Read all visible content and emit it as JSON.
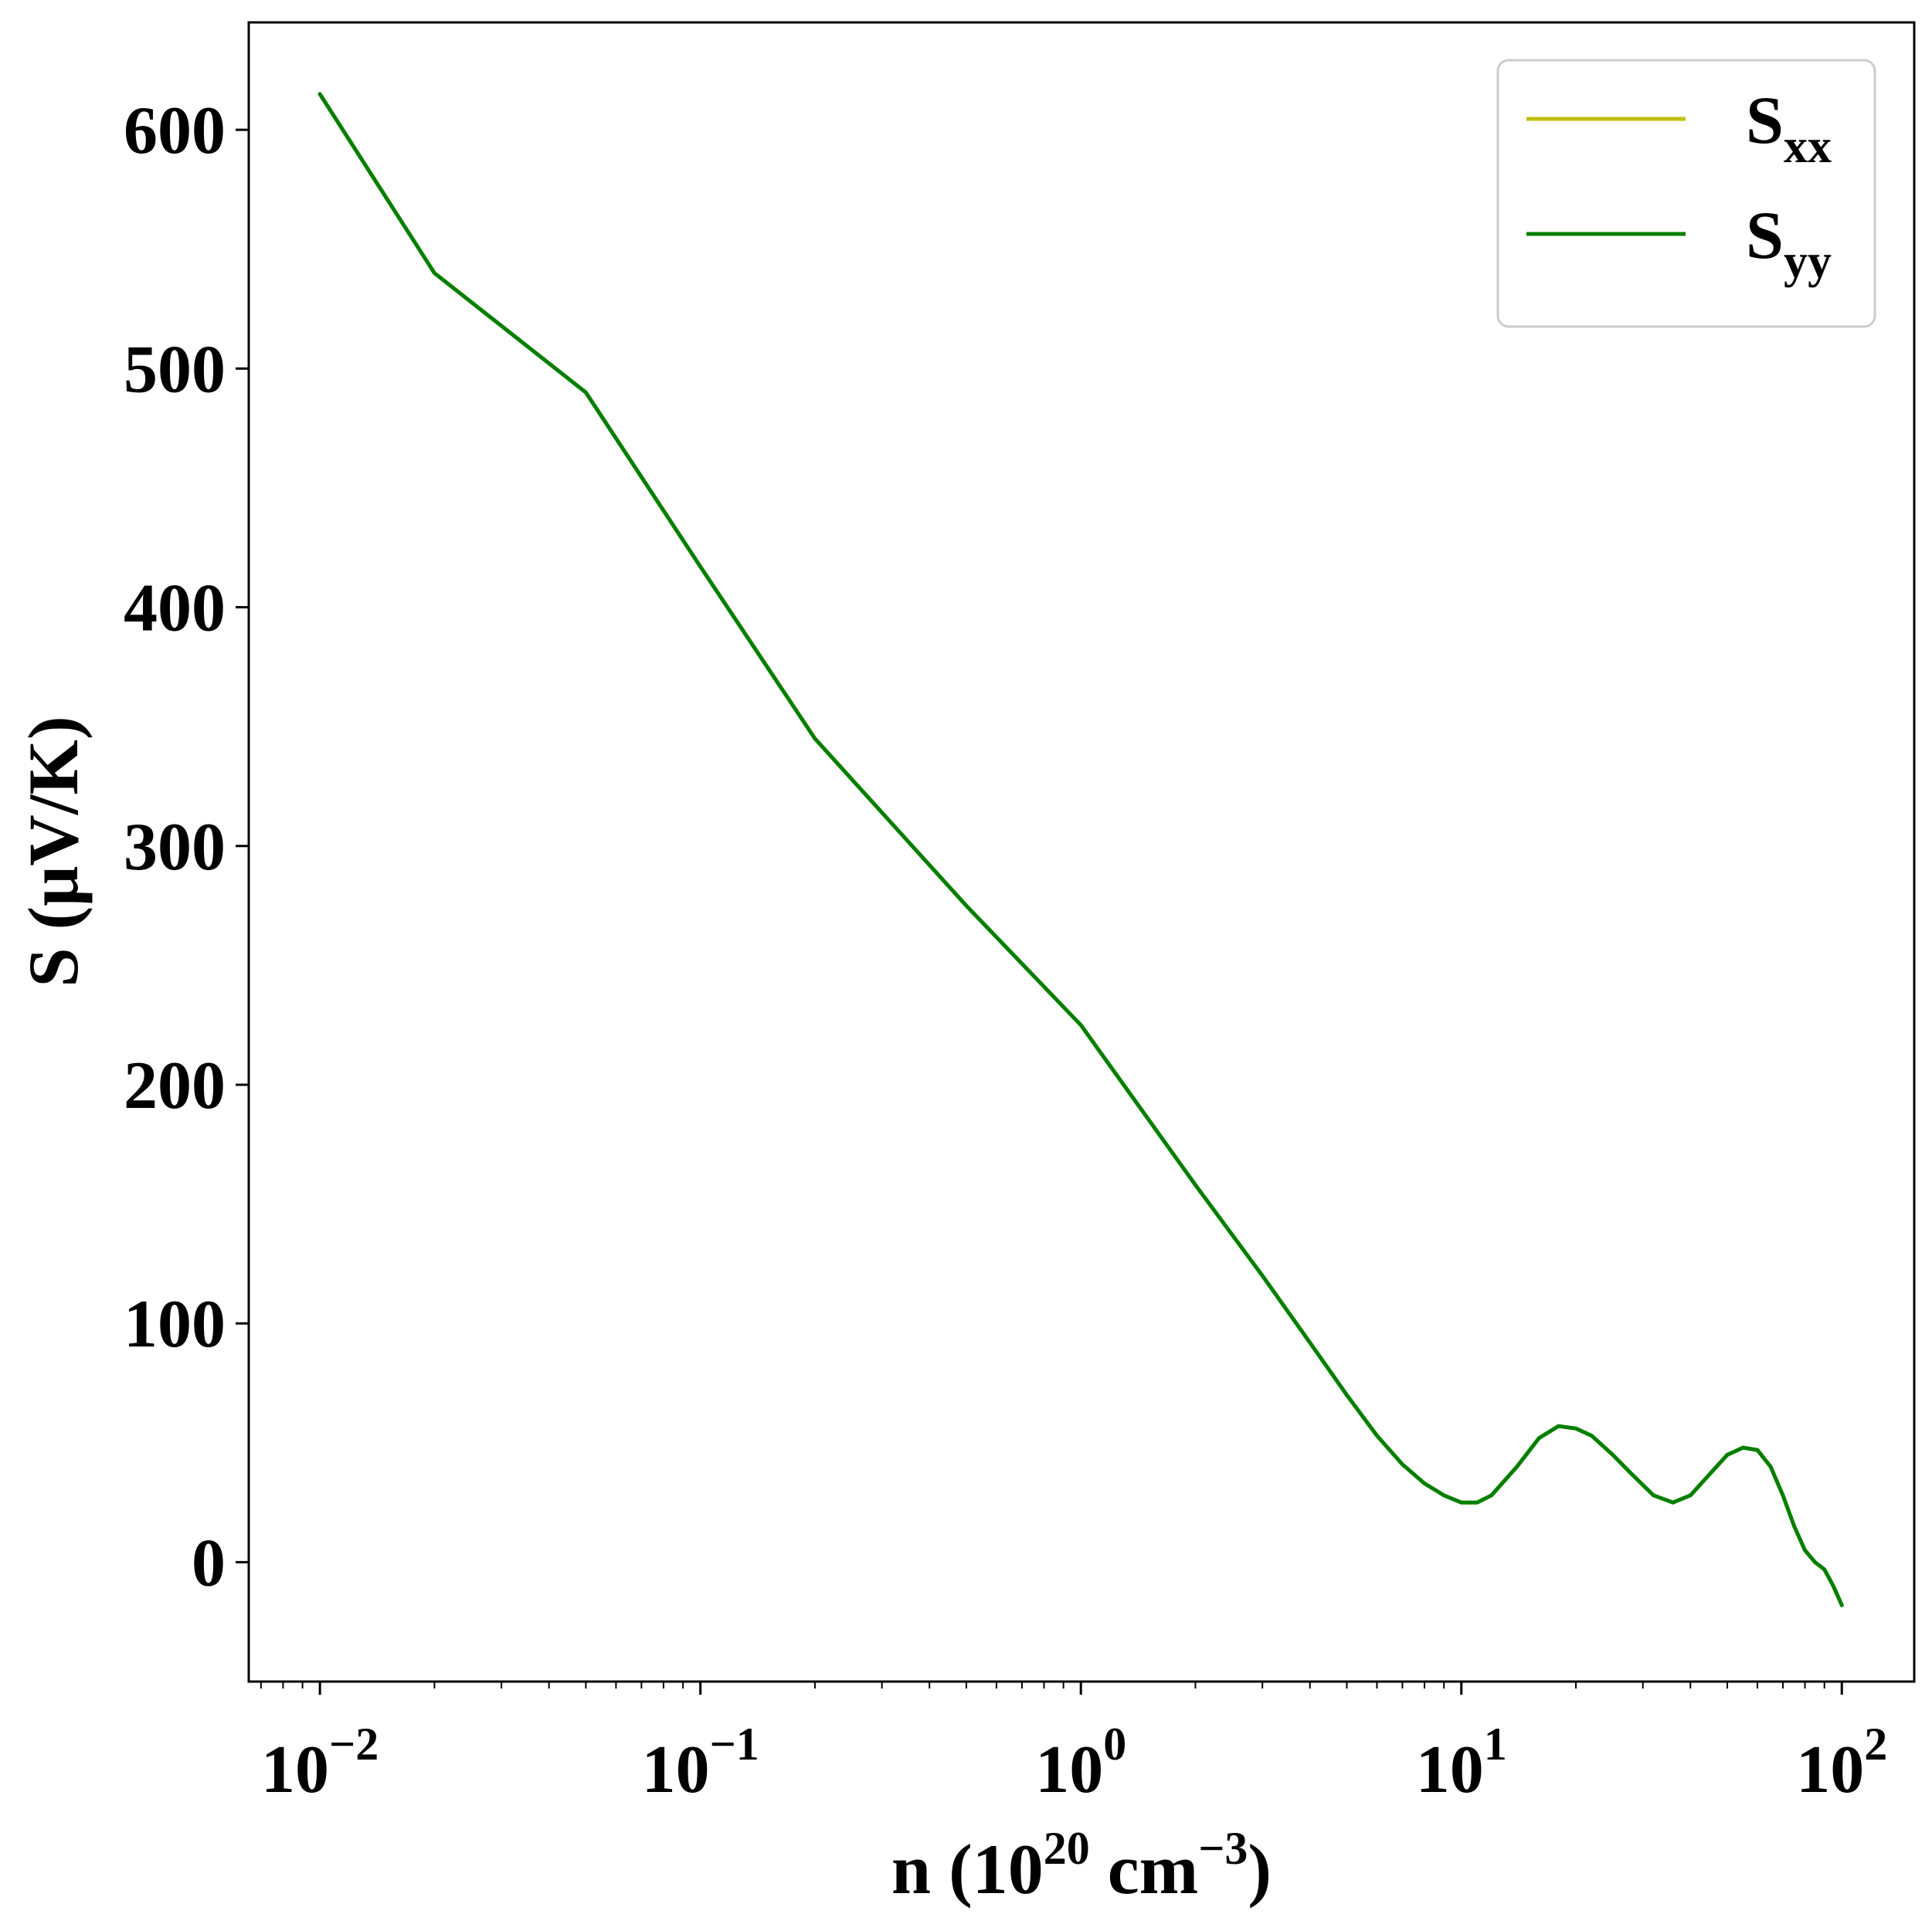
{
  "chart_data": {
    "type": "line",
    "xscale": "log",
    "xlim": [
      0.0065,
      155
    ],
    "ylim": [
      -50,
      645
    ],
    "xlabel": {
      "main": "n (10",
      "sup1": "20",
      "mid": " cm",
      "sup2": "−3",
      "end": ")"
    },
    "ylabel": "S (μV/K)",
    "x_ticks": [
      {
        "value": 0.01,
        "base": "10",
        "exp": "−2"
      },
      {
        "value": 0.1,
        "base": "10",
        "exp": "−1"
      },
      {
        "value": 1,
        "base": "10",
        "exp": "0"
      },
      {
        "value": 10,
        "base": "10",
        "exp": "1"
      },
      {
        "value": 100,
        "base": "10",
        "exp": "2"
      }
    ],
    "y_ticks": [
      0,
      100,
      200,
      300,
      400,
      500,
      600
    ],
    "legend": {
      "placement": "top-right"
    },
    "series": [
      {
        "name": "S",
        "subscript": "xx",
        "color": "#bfbf00",
        "x": [
          0.01,
          0.02,
          0.05,
          0.1,
          0.2,
          0.5,
          1,
          2,
          3,
          4,
          5,
          6,
          7,
          8,
          9,
          10,
          11,
          12,
          14,
          16,
          18,
          20,
          22,
          25,
          28,
          32,
          36,
          40,
          45,
          50,
          55,
          60,
          65,
          70,
          75,
          80,
          85,
          90,
          95,
          100
        ],
        "y": [
          615,
          540,
          490,
          417,
          345,
          275,
          225,
          158,
          120,
          92,
          70,
          53,
          41,
          33,
          28,
          25,
          25,
          28,
          40,
          52,
          57,
          56,
          53,
          45,
          37,
          28,
          25,
          28,
          37,
          45,
          48,
          47,
          40,
          28,
          15,
          5,
          0,
          -3,
          -10,
          -18
        ]
      },
      {
        "name": "S",
        "subscript": "yy",
        "color": "#007f00",
        "x": [
          0.01,
          0.02,
          0.05,
          0.1,
          0.2,
          0.5,
          1,
          2,
          3,
          4,
          5,
          6,
          7,
          8,
          9,
          10,
          11,
          12,
          14,
          16,
          18,
          20,
          22,
          25,
          28,
          32,
          36,
          40,
          45,
          50,
          55,
          60,
          65,
          70,
          75,
          80,
          85,
          90,
          95,
          100
        ],
        "y": [
          615,
          540,
          490,
          417,
          345,
          275,
          225,
          158,
          120,
          92,
          70,
          53,
          41,
          33,
          28,
          25,
          25,
          28,
          40,
          52,
          57,
          56,
          53,
          45,
          37,
          28,
          25,
          28,
          37,
          45,
          48,
          47,
          40,
          28,
          15,
          5,
          0,
          -3,
          -10,
          -18
        ]
      }
    ]
  }
}
